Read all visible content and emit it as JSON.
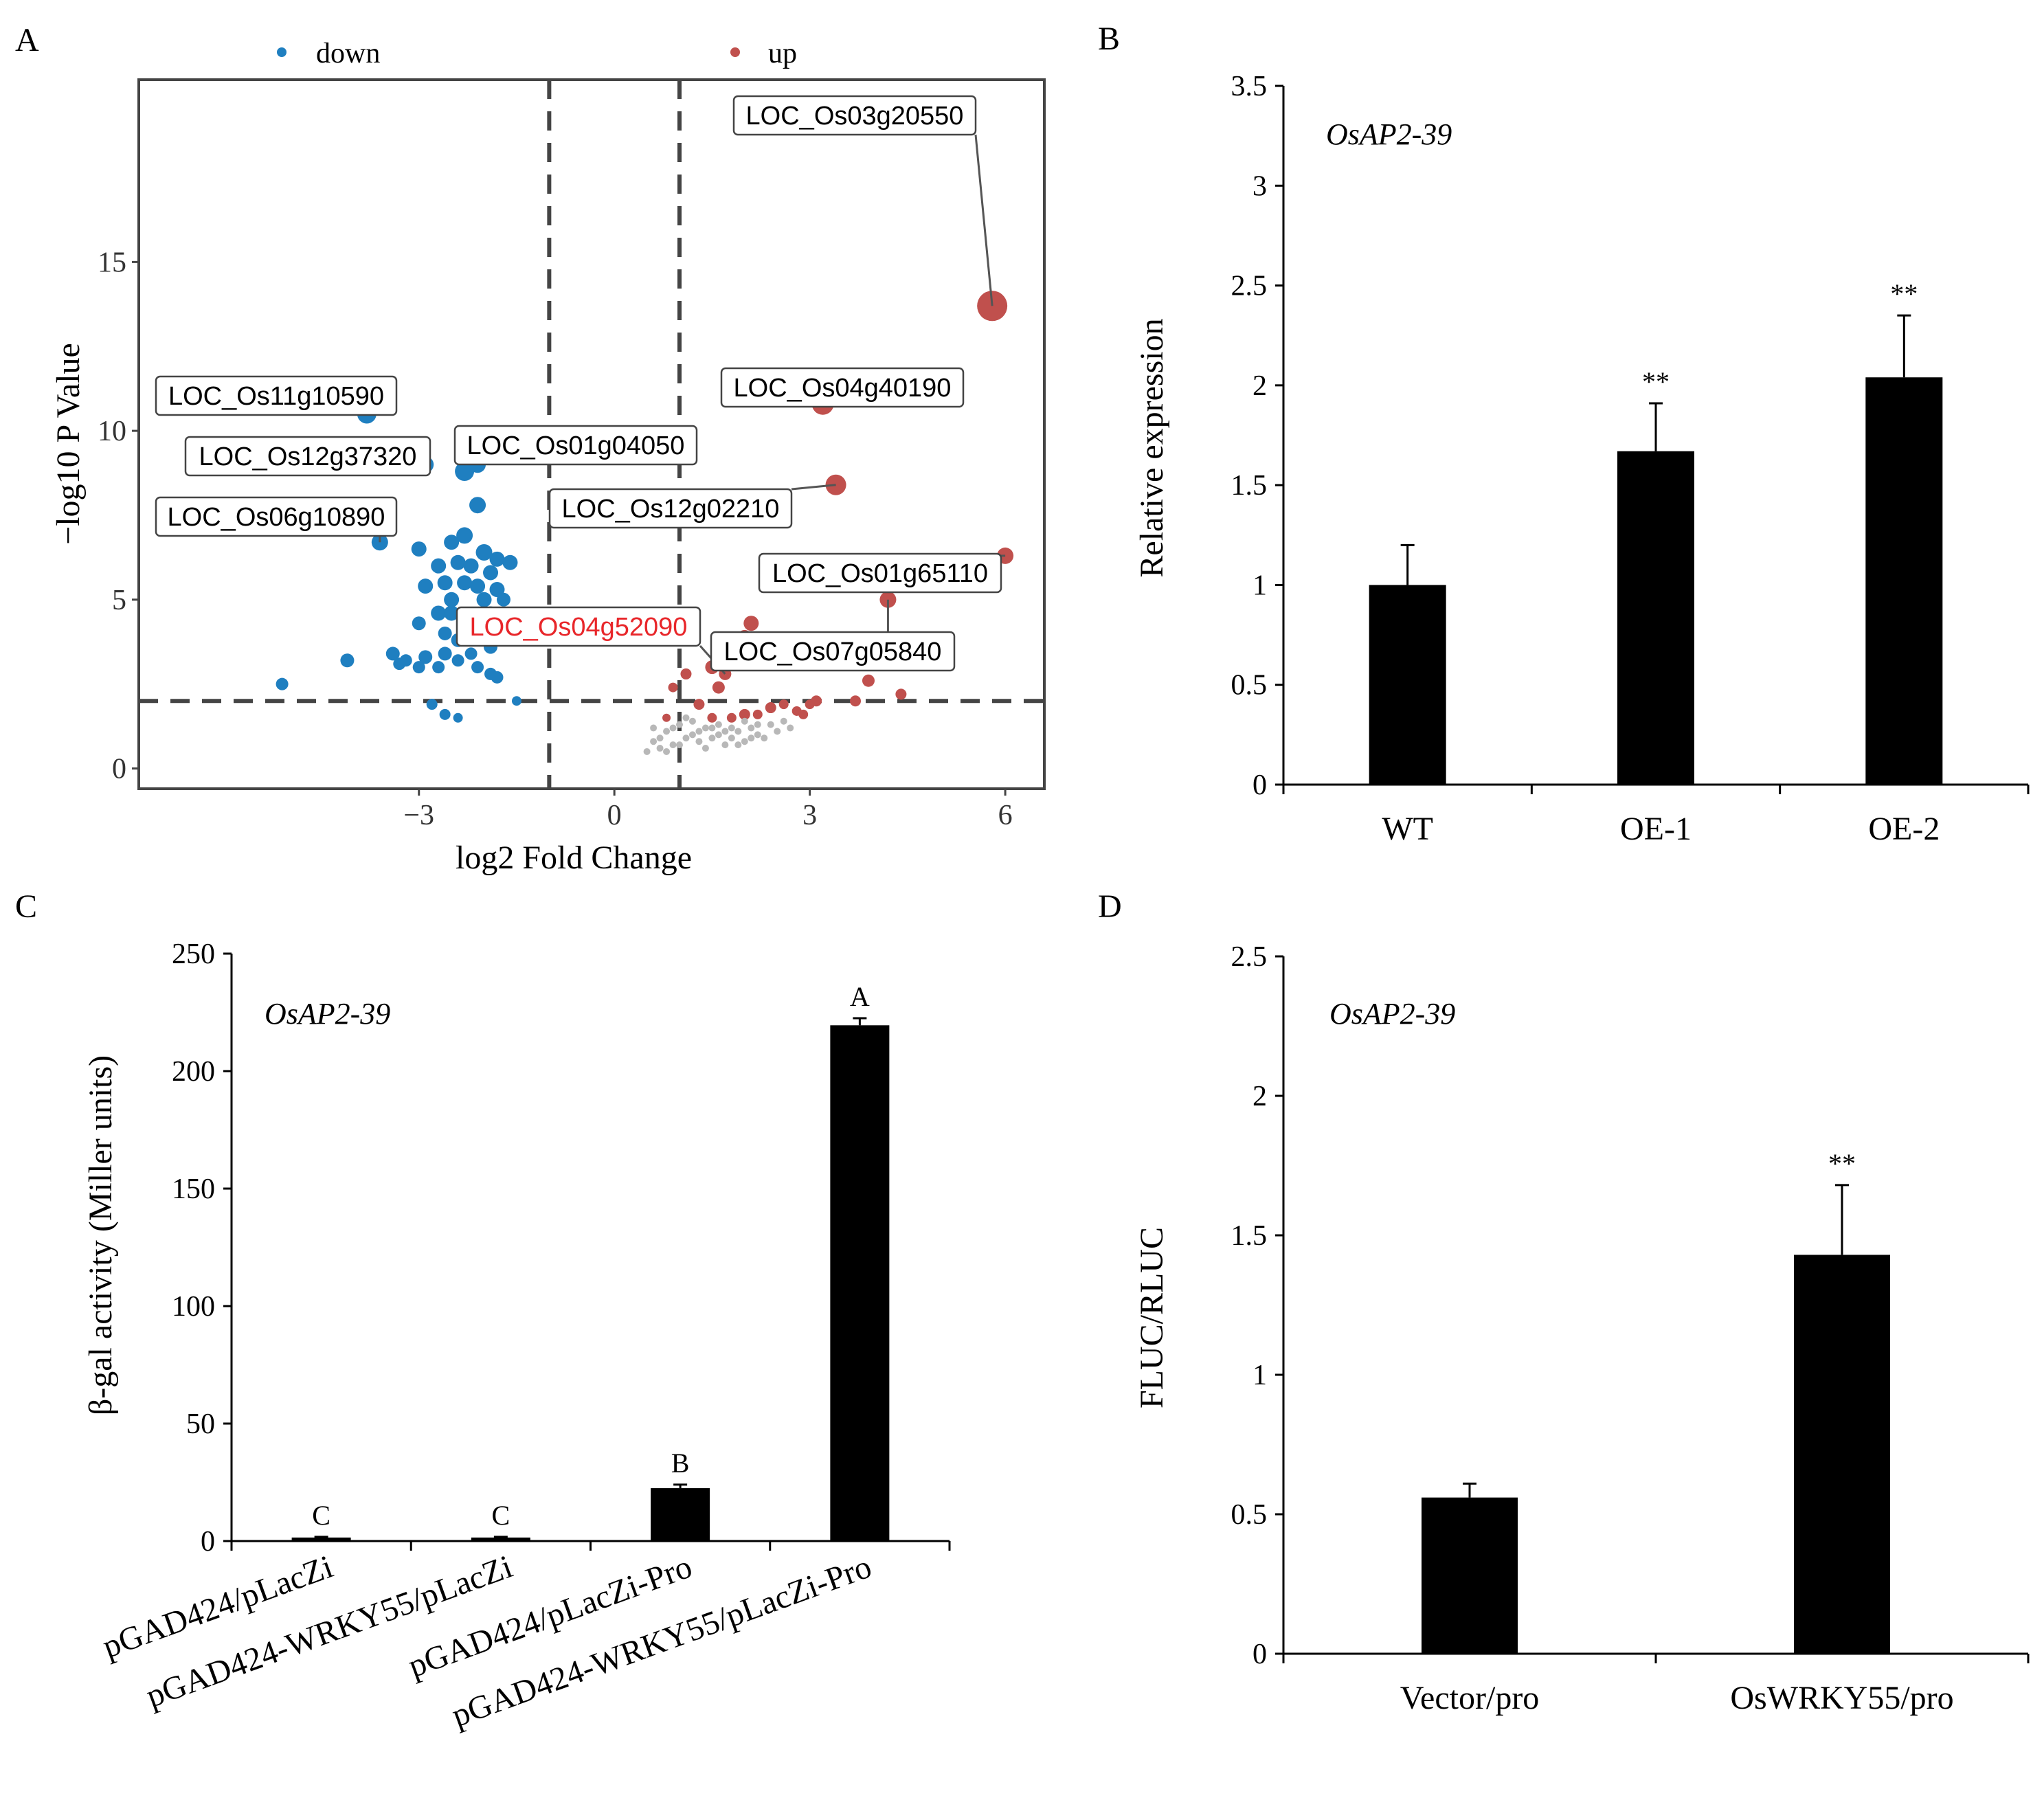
{
  "panels": {
    "A": "A",
    "B": "B",
    "C": "C",
    "D": "D"
  },
  "chart_data": [
    {
      "panel": "A",
      "type": "scatter",
      "xlabel": "log2 Fold Change",
      "ylabel": "−log10 P Value",
      "xlim": [
        -7.3,
        6.6
      ],
      "ylim": [
        -0.6,
        20.4
      ],
      "xticks": [
        -3,
        0,
        3,
        6
      ],
      "xtick_labels": [
        "−3",
        "0",
        "3",
        "6"
      ],
      "yticks": [
        0,
        5,
        10,
        15
      ],
      "yticks_labels": [
        "0",
        "5",
        "10",
        "15"
      ],
      "thresholds": {
        "x": [
          -1,
          1
        ],
        "y": 2
      },
      "legend": [
        {
          "key": "down",
          "label": "down",
          "color": "#1f7fc0"
        },
        {
          "key": "up",
          "label": "up",
          "color": "#c0504d"
        }
      ],
      "colors": {
        "down": "#1f7fc0",
        "up": "#c0504d",
        "ns": "#b8b8b8"
      },
      "series": [
        {
          "name": "down",
          "points": [
            [
              -3.8,
              10.5,
              14
            ],
            [
              -2.9,
              9.0,
              12
            ],
            [
              -2.3,
              8.8,
              14
            ],
            [
              -2.1,
              9.0,
              12
            ],
            [
              -2.1,
              7.8,
              12
            ],
            [
              -3.6,
              6.7,
              12
            ],
            [
              -3.0,
              6.5,
              11
            ],
            [
              -2.5,
              6.7,
              11
            ],
            [
              -2.3,
              6.9,
              12
            ],
            [
              -2.0,
              6.4,
              12
            ],
            [
              -1.8,
              6.2,
              11
            ],
            [
              -1.6,
              6.1,
              11
            ],
            [
              -2.7,
              6.0,
              11
            ],
            [
              -2.4,
              6.1,
              11
            ],
            [
              -2.2,
              6.0,
              11
            ],
            [
              -1.9,
              5.8,
              11
            ],
            [
              -2.9,
              5.4,
              11
            ],
            [
              -2.6,
              5.5,
              11
            ],
            [
              -2.3,
              5.5,
              11
            ],
            [
              -2.1,
              5.4,
              11
            ],
            [
              -1.8,
              5.3,
              11
            ],
            [
              -1.7,
              5.0,
              10
            ],
            [
              -2.5,
              5.0,
              11
            ],
            [
              -2.0,
              5.0,
              11
            ],
            [
              -2.7,
              4.6,
              11
            ],
            [
              -2.5,
              4.6,
              11
            ],
            [
              -2.3,
              4.5,
              11
            ],
            [
              -1.9,
              4.6,
              10
            ],
            [
              -3.0,
              4.3,
              10
            ],
            [
              -2.2,
              4.2,
              10
            ],
            [
              -1.8,
              4.0,
              10
            ],
            [
              -2.6,
              4.0,
              10
            ],
            [
              -2.4,
              3.8,
              10
            ],
            [
              -1.9,
              3.6,
              10
            ],
            [
              -3.4,
              3.4,
              10
            ],
            [
              -3.2,
              3.2,
              9
            ],
            [
              -2.9,
              3.3,
              10
            ],
            [
              -2.6,
              3.4,
              10
            ],
            [
              -2.2,
              3.4,
              9
            ],
            [
              -3.0,
              3.0,
              9
            ],
            [
              -3.3,
              3.1,
              9
            ],
            [
              -2.7,
              3.0,
              9
            ],
            [
              -2.4,
              3.2,
              9
            ],
            [
              -2.1,
              3.0,
              9
            ],
            [
              -1.9,
              2.8,
              9
            ],
            [
              -1.8,
              2.7,
              9
            ],
            [
              -2.8,
              1.9,
              8
            ],
            [
              -2.6,
              1.6,
              8
            ],
            [
              -2.4,
              1.5,
              7
            ],
            [
              -4.1,
              3.2,
              10
            ],
            [
              -5.1,
              2.5,
              9
            ],
            [
              -1.5,
              2.0,
              7
            ]
          ]
        },
        {
          "name": "up",
          "points": [
            [
              5.8,
              13.7,
              22
            ],
            [
              3.2,
              10.8,
              16
            ],
            [
              3.4,
              8.4,
              15
            ],
            [
              6.0,
              6.3,
              12
            ],
            [
              4.2,
              5.0,
              12
            ],
            [
              2.1,
              4.3,
              11
            ],
            [
              2.0,
              3.9,
              10
            ],
            [
              1.8,
              3.6,
              10
            ],
            [
              1.5,
              3.0,
              10
            ],
            [
              1.7,
              2.8,
              9
            ],
            [
              1.6,
              2.4,
              9
            ],
            [
              1.1,
              2.8,
              8
            ],
            [
              3.9,
              2.6,
              9
            ],
            [
              4.4,
              2.2,
              8
            ],
            [
              3.7,
              2.0,
              8
            ],
            [
              3.1,
              2.0,
              8
            ],
            [
              1.3,
              1.9,
              8
            ],
            [
              2.4,
              1.8,
              8
            ],
            [
              2.6,
              1.9,
              7
            ],
            [
              2.8,
              1.7,
              7
            ],
            [
              2.0,
              1.6,
              8
            ],
            [
              1.8,
              1.5,
              7
            ],
            [
              1.5,
              1.5,
              7
            ],
            [
              2.2,
              1.6,
              7
            ],
            [
              2.9,
              1.6,
              7
            ],
            [
              3.0,
              1.9,
              7
            ],
            [
              0.9,
              2.4,
              7
            ],
            [
              0.8,
              1.5,
              6
            ]
          ]
        },
        {
          "name": "ns",
          "points": [
            [
              0.5,
              0.5,
              5
            ],
            [
              0.6,
              0.8,
              5
            ],
            [
              0.7,
              0.9,
              5
            ],
            [
              0.8,
              1.1,
              5
            ],
            [
              0.9,
              1.2,
              5
            ],
            [
              1.0,
              0.7,
              5
            ],
            [
              1.1,
              0.9,
              5
            ],
            [
              1.2,
              1.0,
              5
            ],
            [
              1.3,
              1.1,
              5
            ],
            [
              1.4,
              0.6,
              5
            ],
            [
              1.5,
              0.9,
              5
            ],
            [
              1.6,
              1.0,
              5
            ],
            [
              1.7,
              0.7,
              5
            ],
            [
              1.8,
              0.9,
              5
            ],
            [
              1.9,
              1.1,
              5
            ],
            [
              2.0,
              0.8,
              5
            ],
            [
              2.1,
              1.2,
              5
            ],
            [
              2.2,
              1.0,
              5
            ],
            [
              2.3,
              0.9,
              5
            ],
            [
              2.4,
              1.3,
              5
            ],
            [
              2.5,
              1.1,
              5
            ],
            [
              2.6,
              1.4,
              5
            ],
            [
              2.7,
              1.2,
              5
            ],
            [
              0.6,
              1.2,
              5
            ],
            [
              0.8,
              0.5,
              5
            ],
            [
              1.0,
              1.3,
              5
            ],
            [
              1.2,
              1.4,
              5
            ],
            [
              1.4,
              1.2,
              5
            ],
            [
              1.6,
              1.3,
              5
            ],
            [
              1.8,
              1.2,
              5
            ],
            [
              0.9,
              0.7,
              5
            ],
            [
              1.1,
              1.5,
              5
            ],
            [
              1.3,
              0.8,
              5
            ],
            [
              1.5,
              1.2,
              5
            ],
            [
              1.7,
              1.1,
              5
            ],
            [
              2.0,
              1.4,
              5
            ],
            [
              2.2,
              1.3,
              5
            ],
            [
              0.7,
              0.6,
              5
            ],
            [
              1.9,
              0.7,
              5
            ],
            [
              2.1,
              0.9,
              5
            ]
          ]
        }
      ],
      "annotations": [
        {
          "text": "LOC_Os03g20550",
          "x": 5.8,
          "y": 13.7,
          "color": "#000000"
        },
        {
          "text": "LOC_Os11g10590",
          "x": -3.8,
          "y": 10.5,
          "color": "#000000"
        },
        {
          "text": "LOC_Os04g40190",
          "x": 3.2,
          "y": 10.8,
          "color": "#000000"
        },
        {
          "text": "LOC_Os12g37320",
          "x": -2.9,
          "y": 9.0,
          "color": "#000000"
        },
        {
          "text": "LOC_Os01g04050",
          "x": -2.1,
          "y": 9.0,
          "color": "#000000"
        },
        {
          "text": "LOC_Os12g02210",
          "x": 3.4,
          "y": 8.4,
          "color": "#000000"
        },
        {
          "text": "LOC_Os06g10890",
          "x": -3.6,
          "y": 6.7,
          "color": "#000000"
        },
        {
          "text": "LOC_Os01g65110",
          "x": 6.0,
          "y": 6.3,
          "color": "#000000"
        },
        {
          "text": "LOC_Os04g52090",
          "x": 1.7,
          "y": 2.8,
          "color": "#e8262a"
        },
        {
          "text": "LOC_Os07g05840",
          "x": 4.2,
          "y": 5.0,
          "color": "#000000"
        }
      ]
    },
    {
      "panel": "B",
      "type": "bar",
      "title": "OsAP2-39",
      "ylabel": "Relative expression",
      "ylim": [
        0,
        3.5
      ],
      "yticks": [
        0,
        0.5,
        1,
        1.5,
        2,
        2.5,
        3,
        3.5
      ],
      "ytick_labels": [
        "0",
        "0.5",
        "1",
        "1.5",
        "2",
        "2.5",
        "3",
        "3.5"
      ],
      "categories": [
        "WT",
        "OE-1",
        "OE-2"
      ],
      "values": [
        1.0,
        1.67,
        2.04
      ],
      "errors": [
        0.2,
        0.24,
        0.31
      ],
      "significance": [
        "",
        "**",
        "**"
      ]
    },
    {
      "panel": "C",
      "type": "bar",
      "title": "OsAP2-39",
      "ylabel": "β-gal activity (Miller units)",
      "ylim": [
        0,
        250
      ],
      "yticks": [
        0,
        50,
        100,
        150,
        200,
        250
      ],
      "ytick_labels": [
        "0",
        "50",
        "100",
        "150",
        "200",
        "250"
      ],
      "categories": [
        "pGAD424/pLacZi",
        "pGAD424-WRKY55/pLacZi",
        "pGAD424/pLacZi-Pro",
        "pGAD424-WRKY55/pLacZi-Pro"
      ],
      "values": [
        1.5,
        1.5,
        22.5,
        219.5
      ],
      "errors": [
        0.3,
        0.3,
        1.5,
        3.0
      ],
      "significance": [
        "C",
        "C",
        "B",
        "A"
      ]
    },
    {
      "panel": "D",
      "type": "bar",
      "title": "OsAP2-39",
      "ylabel": "FLUC/RLUC",
      "ylim": [
        0,
        2.5
      ],
      "yticks": [
        0,
        0.5,
        1,
        1.5,
        2,
        2.5
      ],
      "ytick_labels": [
        "0",
        "0.5",
        "1",
        "1.5",
        "2",
        "2.5"
      ],
      "categories": [
        "Vector/pro",
        "OsWRKY55/pro"
      ],
      "values": [
        0.56,
        1.43
      ],
      "errors": [
        0.05,
        0.25
      ],
      "significance": [
        "",
        "**"
      ]
    }
  ]
}
